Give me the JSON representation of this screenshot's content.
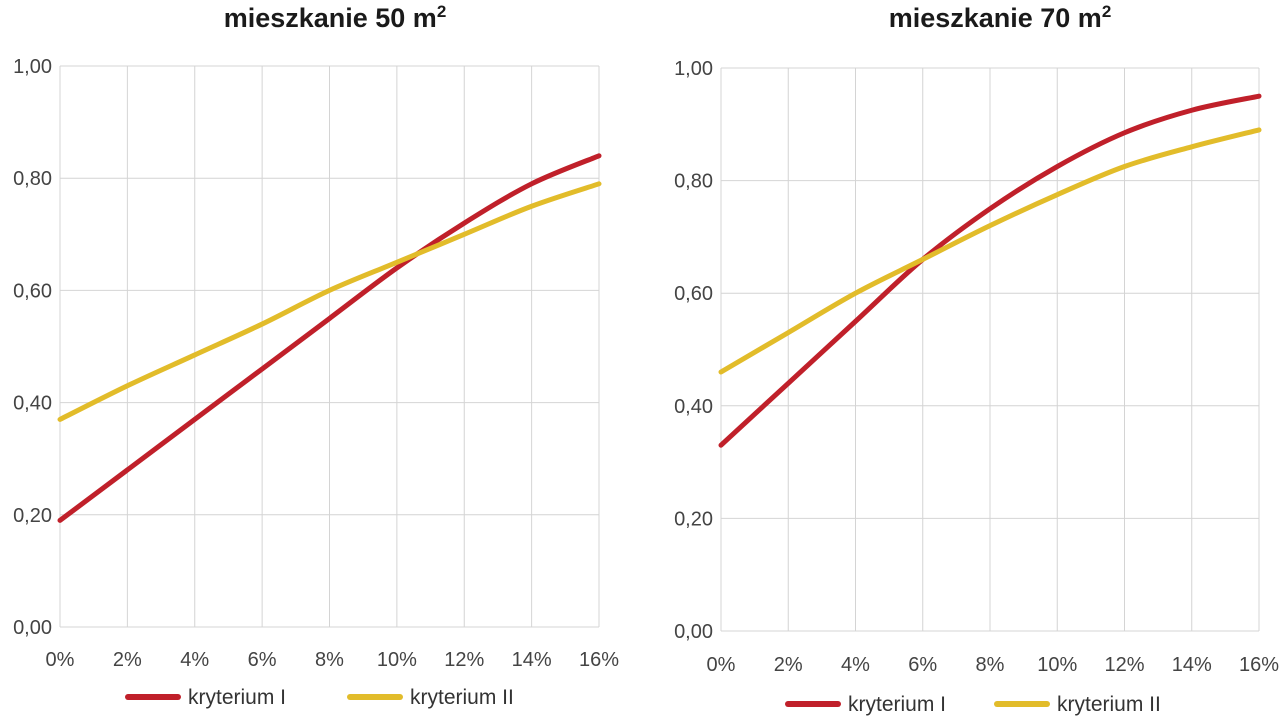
{
  "colors": {
    "kryterium_I": "#c0202a",
    "kryterium_II": "#e2bc2a",
    "grid": "#d4d4d4"
  },
  "chart_data": [
    {
      "type": "line",
      "title": "mieszkanie 50 m",
      "title_superscript": "2",
      "x": [
        0,
        2,
        4,
        6,
        8,
        10,
        12,
        14,
        16
      ],
      "x_tick_labels": [
        "0%",
        "2%",
        "4%",
        "6%",
        "8%",
        "10%",
        "12%",
        "14%",
        "16%"
      ],
      "y_tick_labels": [
        "0,00",
        "0,20",
        "0,40",
        "0,60",
        "0,80",
        "1,00"
      ],
      "y_ticks": [
        0,
        0.2,
        0.4,
        0.6,
        0.8,
        1.0
      ],
      "xlim": [
        0,
        16
      ],
      "ylim": [
        0,
        1
      ],
      "grid": true,
      "legend": "bottom",
      "series": [
        {
          "name": "kryterium I",
          "values": [
            0.19,
            0.28,
            0.37,
            0.46,
            0.55,
            0.64,
            0.72,
            0.79,
            0.84
          ]
        },
        {
          "name": "kryterium II",
          "values": [
            0.37,
            0.43,
            0.485,
            0.54,
            0.6,
            0.65,
            0.7,
            0.75,
            0.79
          ]
        }
      ]
    },
    {
      "type": "line",
      "title": "mieszkanie 70 m",
      "title_superscript": "2",
      "x": [
        0,
        2,
        4,
        6,
        8,
        10,
        12,
        14,
        16
      ],
      "x_tick_labels": [
        "0%",
        "2%",
        "4%",
        "6%",
        "8%",
        "10%",
        "12%",
        "14%",
        "16%"
      ],
      "y_tick_labels": [
        "0,00",
        "0,20",
        "0,40",
        "0,60",
        "0,80",
        "1,00"
      ],
      "y_ticks": [
        0,
        0.2,
        0.4,
        0.6,
        0.8,
        1.0
      ],
      "xlim": [
        0,
        16
      ],
      "ylim": [
        0,
        1
      ],
      "grid": true,
      "legend": "bottom",
      "series": [
        {
          "name": "kryterium I",
          "values": [
            0.33,
            0.44,
            0.55,
            0.66,
            0.75,
            0.825,
            0.885,
            0.925,
            0.95
          ]
        },
        {
          "name": "kryterium II",
          "values": [
            0.46,
            0.53,
            0.6,
            0.66,
            0.72,
            0.775,
            0.825,
            0.86,
            0.89
          ]
        }
      ]
    }
  ]
}
